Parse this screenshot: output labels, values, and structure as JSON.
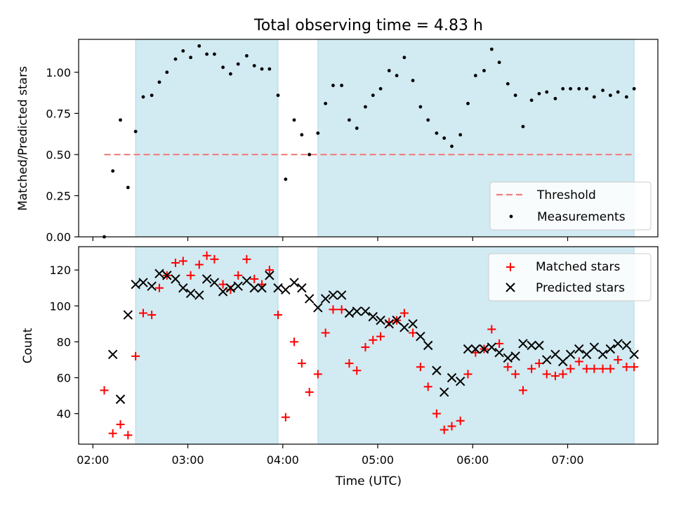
{
  "figure_title": "Total observing time = 4.83 h",
  "chart_data": [
    {
      "type": "scatter",
      "xlabel": "",
      "ylabel": "Matched/Predicted stars",
      "xlim_hours": [
        1.85,
        7.95
      ],
      "ylim": [
        0,
        1.2
      ],
      "y_ticks": [
        0.0,
        0.25,
        0.5,
        0.75,
        1.0
      ],
      "y_tick_labels": [
        "0.00",
        "0.25",
        "0.50",
        "0.75",
        "1.00"
      ],
      "legend_position": "lower-right",
      "shaded_intervals_hours": [
        [
          2.45,
          3.95
        ],
        [
          4.37,
          7.7
        ]
      ],
      "shade_color": "#add8e6",
      "threshold": {
        "name": "Threshold",
        "value": 0.5,
        "x_range_hours": [
          2.12,
          7.7
        ],
        "color": "#f08080"
      },
      "series": [
        {
          "name": "Measurements",
          "color": "#000000",
          "marker": "dot",
          "x_hours": [
            2.12,
            2.21,
            2.29,
            2.37,
            2.45,
            2.53,
            2.62,
            2.7,
            2.78,
            2.87,
            2.95,
            3.03,
            3.12,
            3.2,
            3.28,
            3.37,
            3.45,
            3.53,
            3.62,
            3.7,
            3.78,
            3.86,
            3.95,
            4.03,
            4.12,
            4.2,
            4.28,
            4.37,
            4.45,
            4.53,
            4.62,
            4.7,
            4.78,
            4.87,
            4.95,
            5.03,
            5.12,
            5.2,
            5.28,
            5.37,
            5.45,
            5.53,
            5.62,
            5.7,
            5.78,
            5.87,
            5.95,
            6.03,
            6.12,
            6.2,
            6.28,
            6.37,
            6.45,
            6.53,
            6.62,
            6.7,
            6.78,
            6.87,
            6.95,
            7.03,
            7.12,
            7.2,
            7.28,
            7.37,
            7.45,
            7.53,
            7.62,
            7.7
          ],
          "y": [
            0.0,
            0.4,
            0.71,
            0.3,
            0.64,
            0.85,
            0.86,
            0.94,
            1.0,
            1.08,
            1.13,
            1.09,
            1.16,
            1.11,
            1.11,
            1.03,
            0.99,
            1.05,
            1.1,
            1.04,
            1.02,
            1.02,
            0.86,
            0.35,
            0.71,
            0.62,
            0.5,
            0.63,
            0.81,
            0.92,
            0.92,
            0.71,
            0.66,
            0.79,
            0.86,
            0.9,
            1.01,
            0.98,
            1.09,
            0.95,
            0.79,
            0.71,
            0.63,
            0.6,
            0.55,
            0.62,
            0.81,
            0.98,
            1.01,
            1.14,
            1.06,
            0.93,
            0.86,
            0.67,
            0.83,
            0.87,
            0.88,
            0.84,
            0.9,
            0.9,
            0.9,
            0.9,
            0.85,
            0.89,
            0.86,
            0.88,
            0.85,
            0.9
          ]
        }
      ]
    },
    {
      "type": "scatter",
      "xlabel": "Time (UTC)",
      "ylabel": "Count",
      "xlim_hours": [
        1.85,
        7.95
      ],
      "ylim": [
        23,
        133
      ],
      "y_ticks": [
        40,
        60,
        80,
        100,
        120
      ],
      "y_tick_labels": [
        "40",
        "60",
        "80",
        "100",
        "120"
      ],
      "x_ticks_hours": [
        2,
        3,
        4,
        5,
        6,
        7
      ],
      "x_tick_labels": [
        "02:00",
        "03:00",
        "04:00",
        "05:00",
        "06:00",
        "07:00"
      ],
      "legend_position": "top-right",
      "shaded_intervals_hours": [
        [
          2.45,
          3.95
        ],
        [
          4.37,
          7.7
        ]
      ],
      "shade_color": "#add8e6",
      "series": [
        {
          "name": "Matched stars",
          "color": "#ff0000",
          "marker": "plus",
          "x_hours": [
            2.12,
            2.21,
            2.29,
            2.37,
            2.45,
            2.53,
            2.62,
            2.7,
            2.78,
            2.87,
            2.95,
            3.03,
            3.12,
            3.2,
            3.28,
            3.37,
            3.45,
            3.53,
            3.62,
            3.7,
            3.78,
            3.86,
            3.95,
            4.03,
            4.12,
            4.2,
            4.28,
            4.37,
            4.45,
            4.53,
            4.62,
            4.7,
            4.78,
            4.87,
            4.95,
            5.03,
            5.12,
            5.2,
            5.28,
            5.37,
            5.45,
            5.53,
            5.62,
            5.7,
            5.78,
            5.87,
            5.95,
            6.03,
            6.12,
            6.2,
            6.28,
            6.37,
            6.45,
            6.53,
            6.62,
            6.7,
            6.78,
            6.87,
            6.95,
            7.03,
            7.12,
            7.2,
            7.28,
            7.37,
            7.45,
            7.53,
            7.62,
            7.7
          ],
          "y": [
            53,
            29,
            34,
            28,
            72,
            96,
            95,
            110,
            117,
            124,
            125,
            117,
            123,
            128,
            126,
            112,
            109,
            117,
            126,
            115,
            112,
            120,
            95,
            38,
            80,
            68,
            52,
            62,
            85,
            98,
            98,
            68,
            64,
            77,
            81,
            83,
            91,
            92,
            96,
            85,
            66,
            55,
            40,
            31,
            33,
            36,
            62,
            74,
            76,
            87,
            79,
            66,
            62,
            53,
            65,
            68,
            62,
            61,
            62,
            65,
            69,
            65,
            65,
            65,
            65,
            70,
            66,
            66
          ]
        },
        {
          "name": "Predicted stars",
          "color": "#000000",
          "marker": "x",
          "x_hours": [
            2.21,
            2.29,
            2.37,
            2.45,
            2.53,
            2.62,
            2.7,
            2.78,
            2.87,
            2.95,
            3.03,
            3.12,
            3.2,
            3.28,
            3.37,
            3.45,
            3.53,
            3.62,
            3.7,
            3.78,
            3.86,
            3.95,
            4.03,
            4.12,
            4.2,
            4.28,
            4.37,
            4.45,
            4.53,
            4.62,
            4.7,
            4.78,
            4.87,
            4.95,
            5.03,
            5.12,
            5.2,
            5.28,
            5.37,
            5.45,
            5.53,
            5.62,
            5.7,
            5.78,
            5.87,
            5.95,
            6.03,
            6.12,
            6.2,
            6.28,
            6.37,
            6.45,
            6.53,
            6.62,
            6.7,
            6.78,
            6.87,
            6.95,
            7.03,
            7.12,
            7.2,
            7.28,
            7.37,
            7.45,
            7.53,
            7.62,
            7.7
          ],
          "y": [
            73,
            48,
            95,
            112,
            113,
            111,
            118,
            117,
            115,
            110,
            107,
            106,
            115,
            113,
            108,
            110,
            111,
            114,
            110,
            110,
            117,
            110,
            109,
            113,
            110,
            104,
            99,
            104,
            106,
            106,
            96,
            97,
            97,
            94,
            92,
            90,
            92,
            88,
            90,
            83,
            78,
            64,
            52,
            60,
            58,
            76,
            76,
            76,
            77,
            74,
            71,
            72,
            79,
            78,
            78,
            70,
            73,
            69,
            73,
            76,
            73,
            77,
            73,
            76,
            79,
            78,
            73
          ]
        }
      ]
    }
  ]
}
